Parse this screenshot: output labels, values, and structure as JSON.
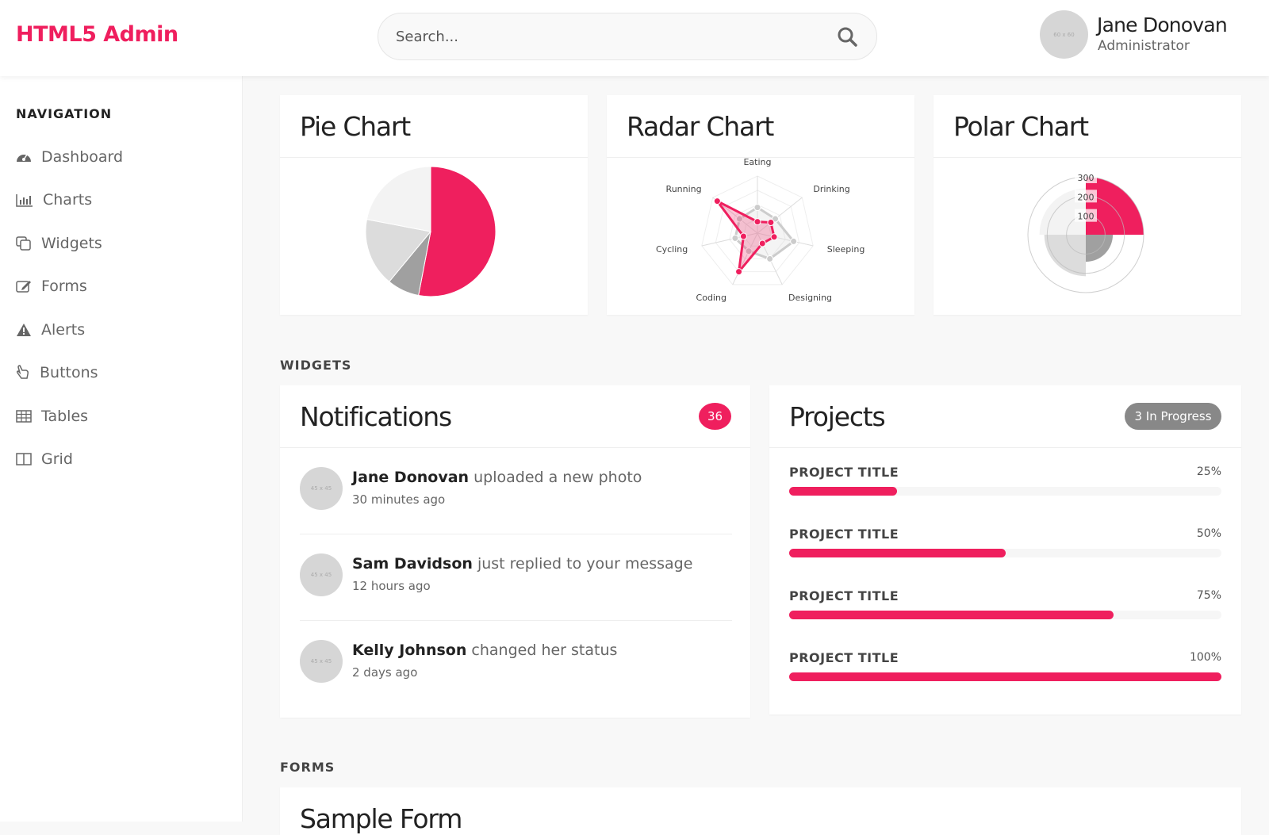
{
  "header": {
    "logo": "HTML5 Admin",
    "search_placeholder": "Search...",
    "search_icon": "search-icon",
    "user": {
      "name": "Jane Donovan",
      "role": "Administrator",
      "avatar_text": "60 x 60"
    }
  },
  "colors": {
    "accent": "#ef1f5e",
    "grey_dark": "#a0a0a0",
    "grey_mid": "#dcdcdc",
    "grey_light": "#f3f3f3",
    "badge_grey": "#888888"
  },
  "sidebar": {
    "heading": "NAVIGATION",
    "items": [
      {
        "label": "Dashboard",
        "icon": "dashboard-icon"
      },
      {
        "label": "Charts",
        "icon": "bar-chart-icon"
      },
      {
        "label": "Widgets",
        "icon": "widgets-icon"
      },
      {
        "label": "Forms",
        "icon": "edit-icon"
      },
      {
        "label": "Alerts",
        "icon": "warning-icon"
      },
      {
        "label": "Buttons",
        "icon": "hand-pointer-icon"
      },
      {
        "label": "Tables",
        "icon": "table-icon"
      },
      {
        "label": "Grid",
        "icon": "grid-icon"
      }
    ]
  },
  "charts": {
    "pie_title": "Pie Chart",
    "radar_title": "Radar Chart",
    "polar_title": "Polar Chart"
  },
  "chart_data": [
    {
      "type": "pie",
      "values": [
        53,
        8,
        17,
        22
      ],
      "colors": [
        "#ef1f5e",
        "#a0a0a0",
        "#dcdcdc",
        "#f3f3f3"
      ]
    },
    {
      "type": "radar",
      "categories": [
        "Eating",
        "Drinking",
        "Sleeping",
        "Designing",
        "Coding",
        "Cycling",
        "Running"
      ],
      "ylim": [
        0,
        100
      ],
      "series": [
        {
          "values": [
            45,
            40,
            65,
            50,
            35,
            40,
            40
          ],
          "color": "#cccccc"
        },
        {
          "values": [
            20,
            30,
            30,
            20,
            75,
            25,
            90
          ],
          "color": "#ef1f5e"
        }
      ]
    },
    {
      "type": "polar",
      "ticks": [
        100,
        200,
        300
      ],
      "ylim": [
        0,
        300
      ],
      "values": [
        300,
        140,
        215,
        240
      ],
      "colors": [
        "#ef1f5e",
        "#a0a0a0",
        "#dcdcdc",
        "#f3f3f3"
      ]
    }
  ],
  "widgets": {
    "heading": "WIDGETS",
    "notifications": {
      "title": "Notifications",
      "count": "36",
      "items": [
        {
          "name": "Jane Donovan",
          "action": "uploaded a new photo",
          "time": "30 minutes ago",
          "avatar_text": "45 x 45"
        },
        {
          "name": "Sam Davidson",
          "action": "just replied to your message",
          "time": "12 hours ago",
          "avatar_text": "45 x 45"
        },
        {
          "name": "Kelly Johnson",
          "action": "changed her status",
          "time": "2 days ago",
          "avatar_text": "45 x 45"
        }
      ]
    },
    "projects": {
      "title": "Projects",
      "badge": "3 In Progress",
      "items": [
        {
          "title": "PROJECT TITLE",
          "percent": 25,
          "label": "25%"
        },
        {
          "title": "PROJECT TITLE",
          "percent": 50,
          "label": "50%"
        },
        {
          "title": "PROJECT TITLE",
          "percent": 75,
          "label": "75%"
        },
        {
          "title": "PROJECT TITLE",
          "percent": 100,
          "label": "100%"
        }
      ]
    }
  },
  "forms": {
    "heading": "FORMS",
    "card_title": "Sample Form"
  }
}
